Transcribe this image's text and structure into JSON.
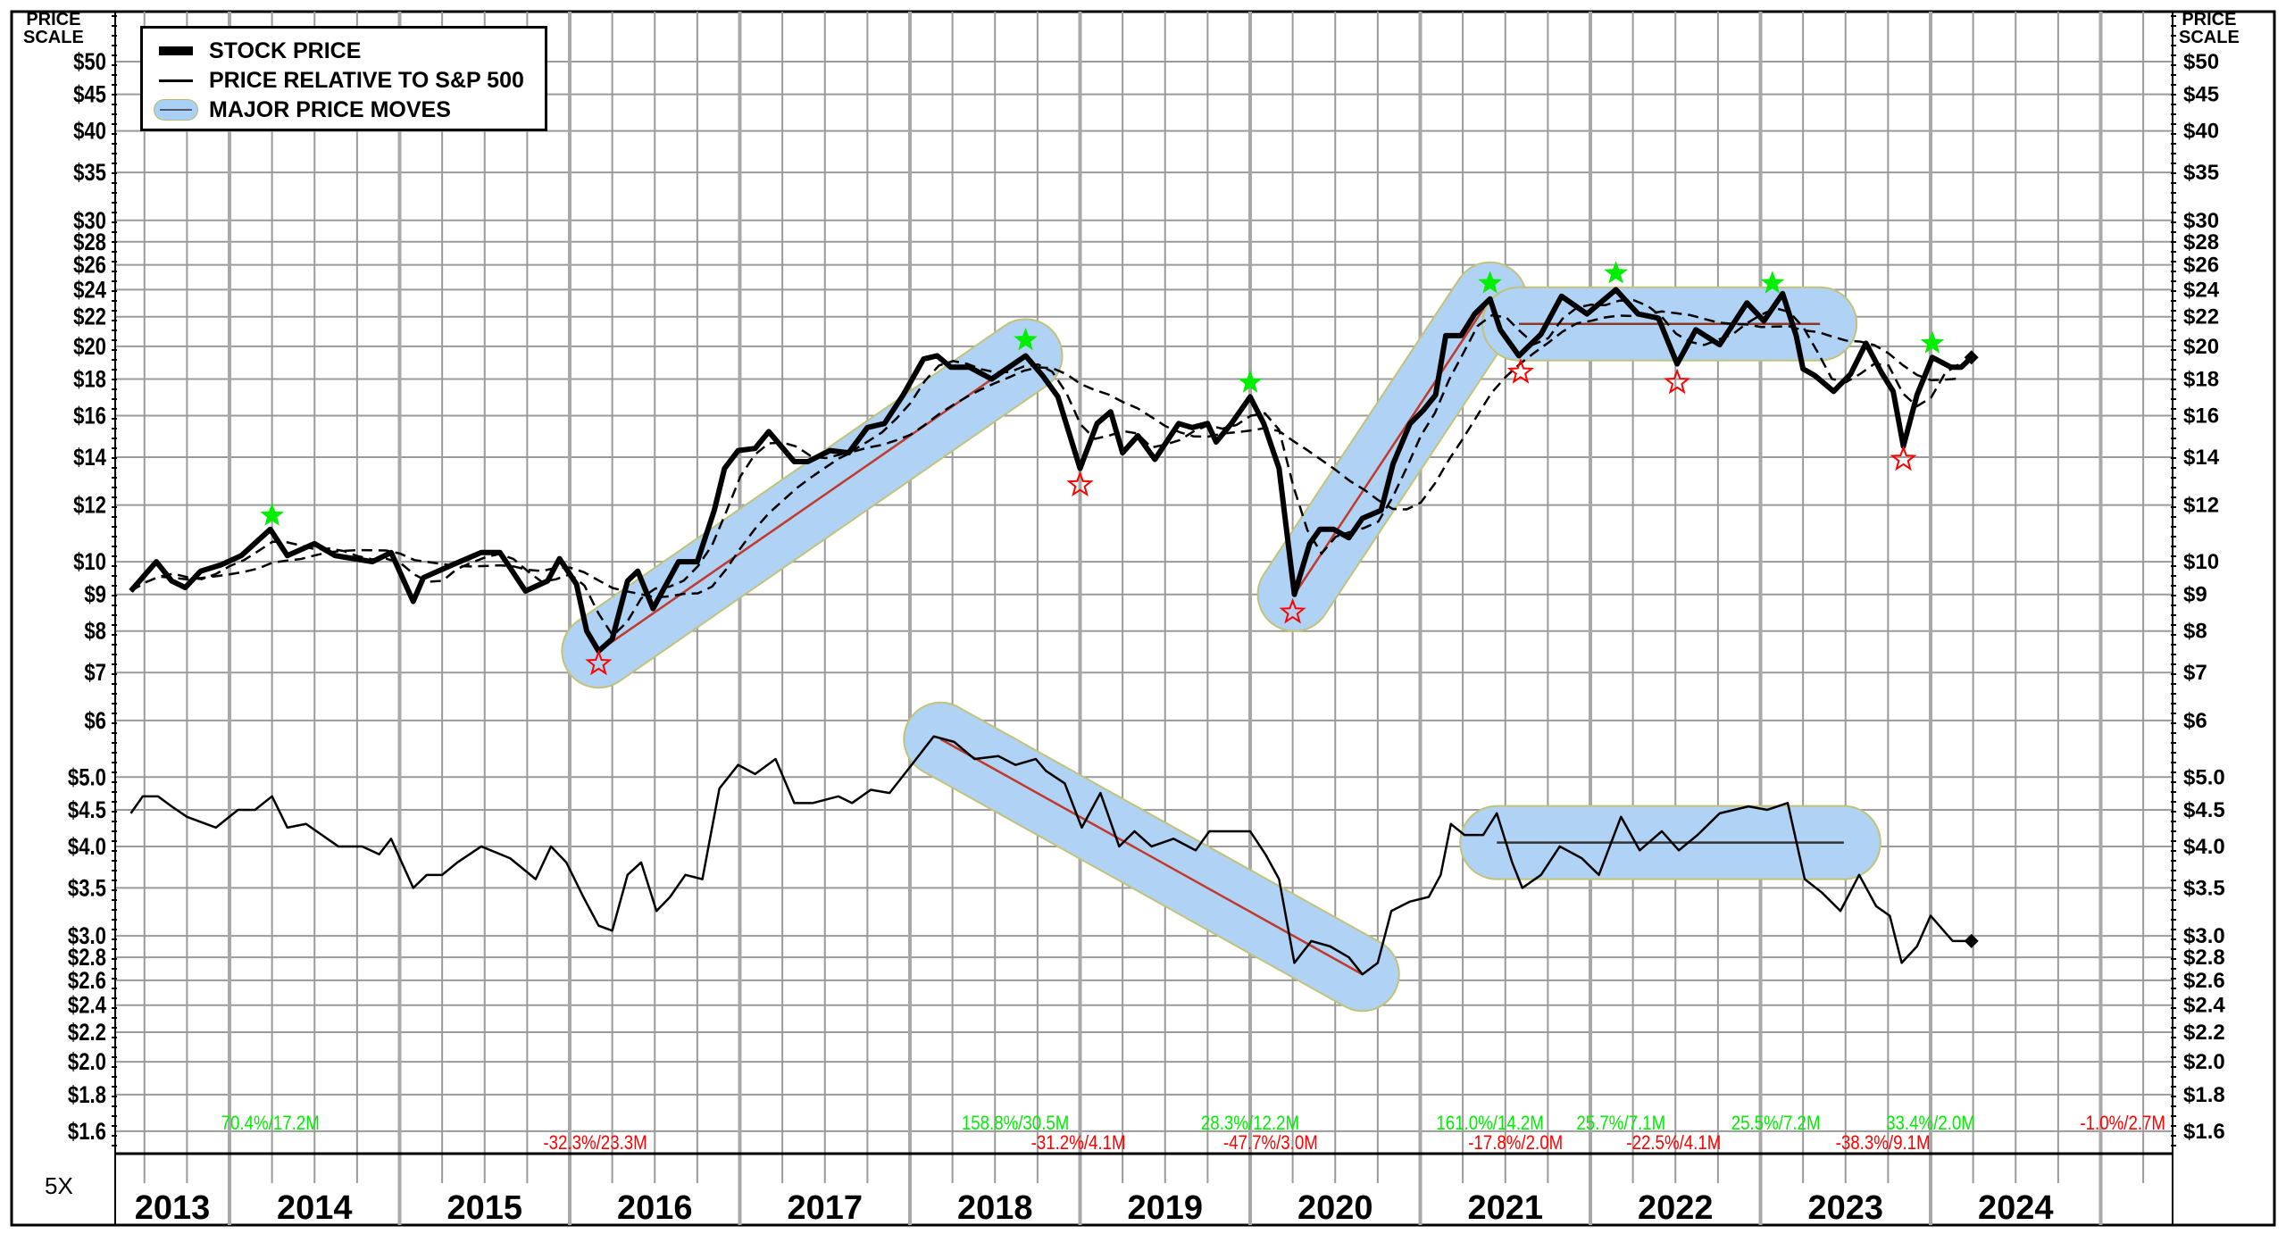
{
  "legend": {
    "stock_price": "STOCK PRICE",
    "relative": "PRICE RELATIVE TO S&P 500",
    "major_moves": "MAJOR PRICE MOVES"
  },
  "axis": {
    "title_line1": "PRICE",
    "title_line2": "SCALE",
    "scale_factor": "5X"
  },
  "chart_data": {
    "type": "line",
    "yscale": "log",
    "ylim": [
      1.6,
      50
    ],
    "xlim": [
      2013.3,
      2025.43
    ],
    "grid": true,
    "legend_position": "top-left",
    "left_tick_labels": [
      {
        "v": 50,
        "t": "$50"
      },
      {
        "v": 45,
        "t": "$45"
      },
      {
        "v": 40,
        "t": "$40"
      },
      {
        "v": 35,
        "t": "$35"
      },
      {
        "v": 30,
        "t": "$30"
      },
      {
        "v": 28,
        "t": "$28"
      },
      {
        "v": 26,
        "t": "$26"
      },
      {
        "v": 24,
        "t": "$24"
      },
      {
        "v": 22,
        "t": "$22"
      },
      {
        "v": 20,
        "t": "$20"
      },
      {
        "v": 18,
        "t": "$18"
      },
      {
        "v": 16,
        "t": "$16"
      },
      {
        "v": 14,
        "t": "$14"
      },
      {
        "v": 12,
        "t": "$12"
      },
      {
        "v": 10,
        "t": "$10"
      },
      {
        "v": 9,
        "t": "$9"
      },
      {
        "v": 8,
        "t": "$8"
      },
      {
        "v": 7,
        "t": "$7"
      },
      {
        "v": 6,
        "t": "$6"
      },
      {
        "v": 5,
        "t": "$5.0"
      },
      {
        "v": 4.5,
        "t": "$4.5"
      },
      {
        "v": 4,
        "t": "$4.0"
      },
      {
        "v": 3.5,
        "t": "$3.5"
      },
      {
        "v": 3,
        "t": "$3.0"
      },
      {
        "v": 2.8,
        "t": "$2.8"
      },
      {
        "v": 2.6,
        "t": "$2.6"
      },
      {
        "v": 2.4,
        "t": "$2.4"
      },
      {
        "v": 2.2,
        "t": "$2.2"
      },
      {
        "v": 2,
        "t": "$2.0"
      },
      {
        "v": 1.8,
        "t": "$1.8"
      },
      {
        "v": 1.6,
        "t": "$1.6"
      }
    ],
    "years": [
      "2013",
      "2014",
      "2015",
      "2016",
      "2017",
      "2018",
      "2019",
      "2020",
      "2021",
      "2022",
      "2023",
      "2024"
    ],
    "series": [
      {
        "name": "STOCK PRICE",
        "color": "#000000",
        "points": [
          [
            2013.42,
            9.1
          ],
          [
            2013.57,
            10.0
          ],
          [
            2013.66,
            9.4
          ],
          [
            2013.74,
            9.2
          ],
          [
            2013.83,
            9.7
          ],
          [
            2013.95,
            9.9
          ],
          [
            2014.07,
            10.2
          ],
          [
            2014.24,
            11.1
          ],
          [
            2014.34,
            10.2
          ],
          [
            2014.5,
            10.6
          ],
          [
            2014.62,
            10.2
          ],
          [
            2014.84,
            10.0
          ],
          [
            2014.95,
            10.3
          ],
          [
            2015.08,
            8.8
          ],
          [
            2015.14,
            9.5
          ],
          [
            2015.31,
            9.9
          ],
          [
            2015.48,
            10.3
          ],
          [
            2015.59,
            10.3
          ],
          [
            2015.74,
            9.1
          ],
          [
            2015.87,
            9.4
          ],
          [
            2015.94,
            10.1
          ],
          [
            2016.04,
            9.3
          ],
          [
            2016.1,
            8.0
          ],
          [
            2016.17,
            7.5
          ],
          [
            2016.25,
            7.8
          ],
          [
            2016.34,
            9.4
          ],
          [
            2016.4,
            9.7
          ],
          [
            2016.49,
            8.6
          ],
          [
            2016.64,
            10.0
          ],
          [
            2016.75,
            10.0
          ],
          [
            2016.85,
            11.8
          ],
          [
            2016.91,
            13.5
          ],
          [
            2016.99,
            14.3
          ],
          [
            2017.09,
            14.4
          ],
          [
            2017.17,
            15.2
          ],
          [
            2017.32,
            13.8
          ],
          [
            2017.4,
            13.8
          ],
          [
            2017.53,
            14.3
          ],
          [
            2017.64,
            14.2
          ],
          [
            2017.75,
            15.4
          ],
          [
            2017.85,
            15.6
          ],
          [
            2017.96,
            17.1
          ],
          [
            2018.08,
            19.2
          ],
          [
            2018.16,
            19.4
          ],
          [
            2018.24,
            18.7
          ],
          [
            2018.35,
            18.7
          ],
          [
            2018.48,
            18.0
          ],
          [
            2018.68,
            19.4
          ],
          [
            2018.78,
            18.2
          ],
          [
            2018.87,
            17.0
          ],
          [
            2019.0,
            13.5
          ],
          [
            2019.1,
            15.6
          ],
          [
            2019.18,
            16.2
          ],
          [
            2019.25,
            14.2
          ],
          [
            2019.34,
            15.0
          ],
          [
            2019.44,
            13.9
          ],
          [
            2019.58,
            15.6
          ],
          [
            2019.66,
            15.4
          ],
          [
            2019.75,
            15.6
          ],
          [
            2019.8,
            14.7
          ],
          [
            2019.89,
            15.6
          ],
          [
            2020.0,
            17.0
          ],
          [
            2020.08,
            15.6
          ],
          [
            2020.17,
            13.5
          ],
          [
            2020.26,
            9.0
          ],
          [
            2020.35,
            10.6
          ],
          [
            2020.41,
            11.1
          ],
          [
            2020.49,
            11.1
          ],
          [
            2020.58,
            10.8
          ],
          [
            2020.66,
            11.5
          ],
          [
            2020.77,
            11.8
          ],
          [
            2020.84,
            13.7
          ],
          [
            2020.94,
            15.6
          ],
          [
            2021.02,
            16.3
          ],
          [
            2021.09,
            17.1
          ],
          [
            2021.15,
            20.7
          ],
          [
            2021.24,
            20.7
          ],
          [
            2021.32,
            22.2
          ],
          [
            2021.41,
            23.3
          ],
          [
            2021.47,
            21.1
          ],
          [
            2021.58,
            19.4
          ],
          [
            2021.71,
            20.8
          ],
          [
            2021.83,
            23.5
          ],
          [
            2021.98,
            22.2
          ],
          [
            2022.15,
            24.0
          ],
          [
            2022.28,
            22.2
          ],
          [
            2022.4,
            21.9
          ],
          [
            2022.51,
            18.9
          ],
          [
            2022.62,
            21.1
          ],
          [
            2022.76,
            20.1
          ],
          [
            2022.92,
            23.0
          ],
          [
            2023.02,
            21.7
          ],
          [
            2023.13,
            23.7
          ],
          [
            2023.21,
            20.7
          ],
          [
            2023.25,
            18.6
          ],
          [
            2023.32,
            18.2
          ],
          [
            2023.43,
            17.3
          ],
          [
            2023.53,
            18.3
          ],
          [
            2023.62,
            20.2
          ],
          [
            2023.71,
            18.4
          ],
          [
            2023.78,
            17.3
          ],
          [
            2023.84,
            14.5
          ],
          [
            2023.92,
            17.1
          ],
          [
            2024.01,
            19.3
          ],
          [
            2024.12,
            18.7
          ],
          [
            2024.18,
            18.7
          ],
          [
            2024.24,
            19.3
          ]
        ]
      },
      {
        "name": "PRICE RELATIVE TO S&P 500",
        "color": "#000000",
        "points": [
          [
            2013.42,
            4.45
          ],
          [
            2013.49,
            4.7
          ],
          [
            2013.58,
            4.7
          ],
          [
            2013.66,
            4.55
          ],
          [
            2013.75,
            4.4
          ],
          [
            2013.92,
            4.25
          ],
          [
            2014.05,
            4.5
          ],
          [
            2014.15,
            4.5
          ],
          [
            2014.25,
            4.7
          ],
          [
            2014.34,
            4.25
          ],
          [
            2014.45,
            4.3
          ],
          [
            2014.64,
            4.0
          ],
          [
            2014.78,
            4.0
          ],
          [
            2014.88,
            3.9
          ],
          [
            2014.95,
            4.1
          ],
          [
            2015.08,
            3.5
          ],
          [
            2015.16,
            3.65
          ],
          [
            2015.25,
            3.65
          ],
          [
            2015.34,
            3.8
          ],
          [
            2015.48,
            4.0
          ],
          [
            2015.65,
            3.85
          ],
          [
            2015.8,
            3.6
          ],
          [
            2015.89,
            4.0
          ],
          [
            2015.98,
            3.8
          ],
          [
            2016.08,
            3.4
          ],
          [
            2016.17,
            3.1
          ],
          [
            2016.25,
            3.05
          ],
          [
            2016.34,
            3.65
          ],
          [
            2016.42,
            3.8
          ],
          [
            2016.51,
            3.25
          ],
          [
            2016.59,
            3.4
          ],
          [
            2016.68,
            3.65
          ],
          [
            2016.78,
            3.6
          ],
          [
            2016.88,
            4.82
          ],
          [
            2016.99,
            5.2
          ],
          [
            2017.09,
            5.05
          ],
          [
            2017.21,
            5.3
          ],
          [
            2017.32,
            4.6
          ],
          [
            2017.43,
            4.6
          ],
          [
            2017.58,
            4.7
          ],
          [
            2017.66,
            4.6
          ],
          [
            2017.77,
            4.8
          ],
          [
            2017.88,
            4.75
          ],
          [
            2018.01,
            5.2
          ],
          [
            2018.14,
            5.7
          ],
          [
            2018.26,
            5.6
          ],
          [
            2018.38,
            5.3
          ],
          [
            2018.52,
            5.35
          ],
          [
            2018.62,
            5.2
          ],
          [
            2018.74,
            5.3
          ],
          [
            2018.8,
            5.1
          ],
          [
            2018.91,
            4.9
          ],
          [
            2019.01,
            4.25
          ],
          [
            2019.12,
            4.75
          ],
          [
            2019.23,
            4.0
          ],
          [
            2019.32,
            4.2
          ],
          [
            2019.42,
            4.0
          ],
          [
            2019.55,
            4.1
          ],
          [
            2019.68,
            3.95
          ],
          [
            2019.76,
            4.2
          ],
          [
            2019.89,
            4.2
          ],
          [
            2020.0,
            4.2
          ],
          [
            2020.09,
            3.9
          ],
          [
            2020.17,
            3.6
          ],
          [
            2020.26,
            2.75
          ],
          [
            2020.36,
            2.95
          ],
          [
            2020.47,
            2.9
          ],
          [
            2020.58,
            2.8
          ],
          [
            2020.66,
            2.65
          ],
          [
            2020.75,
            2.75
          ],
          [
            2020.83,
            3.25
          ],
          [
            2020.94,
            3.35
          ],
          [
            2021.05,
            3.4
          ],
          [
            2021.12,
            3.65
          ],
          [
            2021.18,
            4.3
          ],
          [
            2021.26,
            4.15
          ],
          [
            2021.37,
            4.15
          ],
          [
            2021.45,
            4.45
          ],
          [
            2021.54,
            3.8
          ],
          [
            2021.6,
            3.5
          ],
          [
            2021.71,
            3.65
          ],
          [
            2021.82,
            4.0
          ],
          [
            2021.95,
            3.85
          ],
          [
            2022.05,
            3.65
          ],
          [
            2022.18,
            4.4
          ],
          [
            2022.29,
            3.95
          ],
          [
            2022.42,
            4.2
          ],
          [
            2022.52,
            3.95
          ],
          [
            2022.63,
            4.15
          ],
          [
            2022.76,
            4.45
          ],
          [
            2022.93,
            4.55
          ],
          [
            2023.04,
            4.5
          ],
          [
            2023.16,
            4.6
          ],
          [
            2023.26,
            3.6
          ],
          [
            2023.36,
            3.45
          ],
          [
            2023.47,
            3.25
          ],
          [
            2023.58,
            3.65
          ],
          [
            2023.68,
            3.3
          ],
          [
            2023.76,
            3.2
          ],
          [
            2023.83,
            2.75
          ],
          [
            2023.92,
            2.9
          ],
          [
            2024.0,
            3.2
          ],
          [
            2024.13,
            2.95
          ],
          [
            2024.24,
            2.95
          ]
        ]
      }
    ],
    "major_price_moves": [
      {
        "series": "stock",
        "from": [
          2016.17,
          7.5
        ],
        "to": [
          2018.68,
          19.4
        ],
        "line_color": "#c0392b"
      },
      {
        "series": "stock",
        "from": [
          2020.26,
          9.0
        ],
        "to": [
          2021.41,
          23.3
        ],
        "line_color": "#c0392b"
      },
      {
        "series": "stock",
        "from": [
          2021.58,
          21.5
        ],
        "to": [
          2023.35,
          21.5
        ],
        "line_color": "#8b3a2a"
      },
      {
        "series": "relative",
        "from": [
          2018.18,
          5.65
        ],
        "to": [
          2020.66,
          2.65
        ],
        "line_color": "#c0392b"
      },
      {
        "series": "relative",
        "from": [
          2021.45,
          4.05
        ],
        "to": [
          2023.49,
          4.05
        ],
        "line_color": "#333333"
      }
    ],
    "highs": [
      [
        2014.25,
        11.6
      ],
      [
        2018.68,
        20.4
      ],
      [
        2020.0,
        17.8
      ],
      [
        2021.41,
        24.5
      ],
      [
        2022.15,
        25.3
      ],
      [
        2023.07,
        24.5
      ],
      [
        2024.01,
        20.2
      ]
    ],
    "lows": [
      [
        2016.17,
        7.2
      ],
      [
        2019.0,
        12.8
      ],
      [
        2020.25,
        8.5
      ],
      [
        2021.59,
        18.4
      ],
      [
        2022.51,
        17.8
      ],
      [
        2023.84,
        13.9
      ]
    ],
    "annotations_up": [
      {
        "t": 2014.24,
        "text": "70.4%/17.2M"
      },
      {
        "t": 2018.62,
        "text": "158.8%/30.5M"
      },
      {
        "t": 2020.0,
        "text": "28.3%/12.2M"
      },
      {
        "t": 2021.41,
        "text": "161.0%/14.2M"
      },
      {
        "t": 2022.18,
        "text": "25.7%/7.1M"
      },
      {
        "t": 2023.09,
        "text": "25.5%/7.2M"
      },
      {
        "t": 2024.0,
        "text": "33.4%/2.0M"
      }
    ],
    "annotations_down": [
      {
        "t": 2016.15,
        "text": "-32.3%/23.3M",
        "row": 2
      },
      {
        "t": 2018.99,
        "text": "-31.2%/4.1M",
        "row": 2
      },
      {
        "t": 2020.12,
        "text": "-47.7%/3.0M",
        "row": 2
      },
      {
        "t": 2021.56,
        "text": "-17.8%/2.0M",
        "row": 2
      },
      {
        "t": 2022.49,
        "text": "-22.5%/4.1M",
        "row": 2
      },
      {
        "t": 2023.72,
        "text": "-38.3%/9.1M",
        "row": 2
      },
      {
        "t": 2025.4,
        "text": "-1.0%/2.7M",
        "row": 1
      }
    ],
    "colors": {
      "up": "#00ee00",
      "down": "#ff0000",
      "band": "#b0d2f4",
      "band_edge": "#c2c27a",
      "grid": "#9a9a9a"
    }
  }
}
